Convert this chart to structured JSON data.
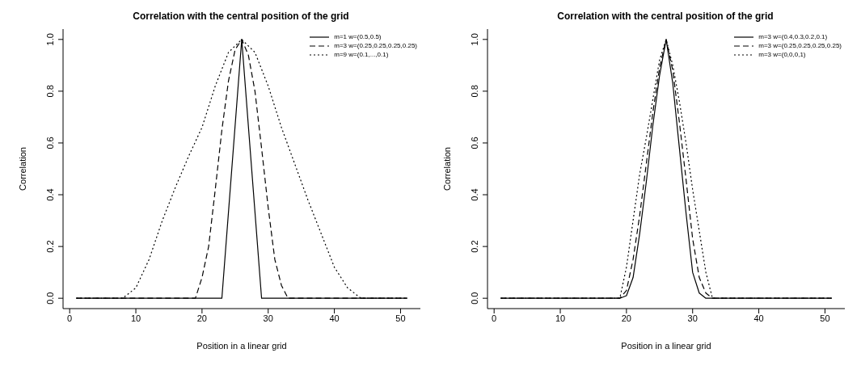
{
  "chart_data": [
    {
      "type": "line",
      "title": "Correlation with the central position of the grid",
      "xlabel": "Position in a linear grid",
      "ylabel": "Correlation",
      "xlim": [
        -1,
        53
      ],
      "xticks": [
        0,
        10,
        20,
        30,
        40,
        50
      ],
      "ylim": [
        -0.04,
        1.04
      ],
      "yticks": [
        {
          "value": 0,
          "label": "0.0"
        },
        {
          "value": 0.2,
          "label": "0.2"
        },
        {
          "value": 0.4,
          "label": "0.4"
        },
        {
          "value": 0.6,
          "label": "0.6"
        },
        {
          "value": 0.8,
          "label": "0.8"
        },
        {
          "value": 1,
          "label": "1.0"
        }
      ],
      "legend": "top right",
      "grid": false,
      "marker": "none",
      "series": [
        {
          "name": "m=1 w=(0.5,0.5)",
          "color": "#000000",
          "line_style": "solid",
          "x": [
            1,
            23,
            26,
            29,
            51
          ],
          "values": [
            0,
            0,
            1,
            0,
            0
          ]
        },
        {
          "name": "m=3 w=(0.25,0.25,0.25,0.25)",
          "color": "#000000",
          "line_style": "dashed",
          "x": [
            1,
            19,
            20,
            21,
            22,
            23,
            24,
            25,
            26,
            27,
            28,
            29,
            30,
            31,
            32,
            33,
            51
          ],
          "values": [
            0,
            0,
            0.08,
            0.2,
            0.42,
            0.65,
            0.84,
            0.96,
            1,
            0.94,
            0.8,
            0.58,
            0.35,
            0.15,
            0.05,
            0,
            0
          ]
        },
        {
          "name": "m=9 w=(0.1,...,0.1)",
          "color": "#000000",
          "line_style": "dotted",
          "x": [
            1,
            8,
            10,
            12,
            14,
            16,
            18,
            20,
            22,
            24,
            26,
            28,
            30,
            32,
            34,
            36,
            38,
            40,
            42,
            44,
            51
          ],
          "values": [
            0,
            0,
            0.04,
            0.15,
            0.3,
            0.43,
            0.55,
            0.66,
            0.82,
            0.95,
            1,
            0.95,
            0.82,
            0.66,
            0.52,
            0.38,
            0.25,
            0.12,
            0.04,
            0,
            0
          ]
        }
      ]
    },
    {
      "type": "line",
      "title": "Correlation with the central position of the grid",
      "xlabel": "Position in a linear grid",
      "ylabel": "Correlation",
      "xlim": [
        -1,
        53
      ],
      "xticks": [
        0,
        10,
        20,
        30,
        40,
        50
      ],
      "ylim": [
        -0.04,
        1.04
      ],
      "yticks": [
        {
          "value": 0,
          "label": "0.0"
        },
        {
          "value": 0.2,
          "label": "0.2"
        },
        {
          "value": 0.4,
          "label": "0.4"
        },
        {
          "value": 0.6,
          "label": "0.6"
        },
        {
          "value": 0.8,
          "label": "0.8"
        },
        {
          "value": 1,
          "label": "1.0"
        }
      ],
      "legend": "top right",
      "grid": false,
      "marker": "none",
      "series": [
        {
          "name": "m=3 w=(0.4,0.3,0.2,0.1)",
          "color": "#000000",
          "line_style": "solid",
          "x": [
            1,
            19,
            20,
            21,
            22,
            23,
            24,
            25,
            26,
            27,
            28,
            29,
            30,
            31,
            32,
            33,
            51
          ],
          "values": [
            0,
            0,
            0.01,
            0.08,
            0.25,
            0.45,
            0.67,
            0.86,
            1,
            0.83,
            0.58,
            0.33,
            0.1,
            0.02,
            0,
            0,
            0
          ]
        },
        {
          "name": "m=3 w=(0.25,0.25,0.25,0.25)",
          "color": "#000000",
          "line_style": "dashed",
          "x": [
            1,
            19,
            20,
            21,
            22,
            23,
            24,
            25,
            26,
            27,
            28,
            29,
            30,
            31,
            32,
            33,
            51
          ],
          "values": [
            0,
            0,
            0.03,
            0.15,
            0.32,
            0.52,
            0.72,
            0.89,
            1,
            0.88,
            0.68,
            0.46,
            0.23,
            0.08,
            0.02,
            0,
            0
          ]
        },
        {
          "name": "m=3 w=(0,0,0,1)",
          "color": "#000000",
          "line_style": "dotted",
          "x": [
            1,
            19,
            20,
            21,
            22,
            23,
            24,
            25,
            26,
            27,
            28,
            29,
            30,
            31,
            32,
            33,
            51
          ],
          "values": [
            0,
            0,
            0.12,
            0.3,
            0.48,
            0.62,
            0.77,
            0.92,
            1,
            0.9,
            0.76,
            0.6,
            0.42,
            0.26,
            0.1,
            0,
            0
          ]
        }
      ]
    }
  ]
}
